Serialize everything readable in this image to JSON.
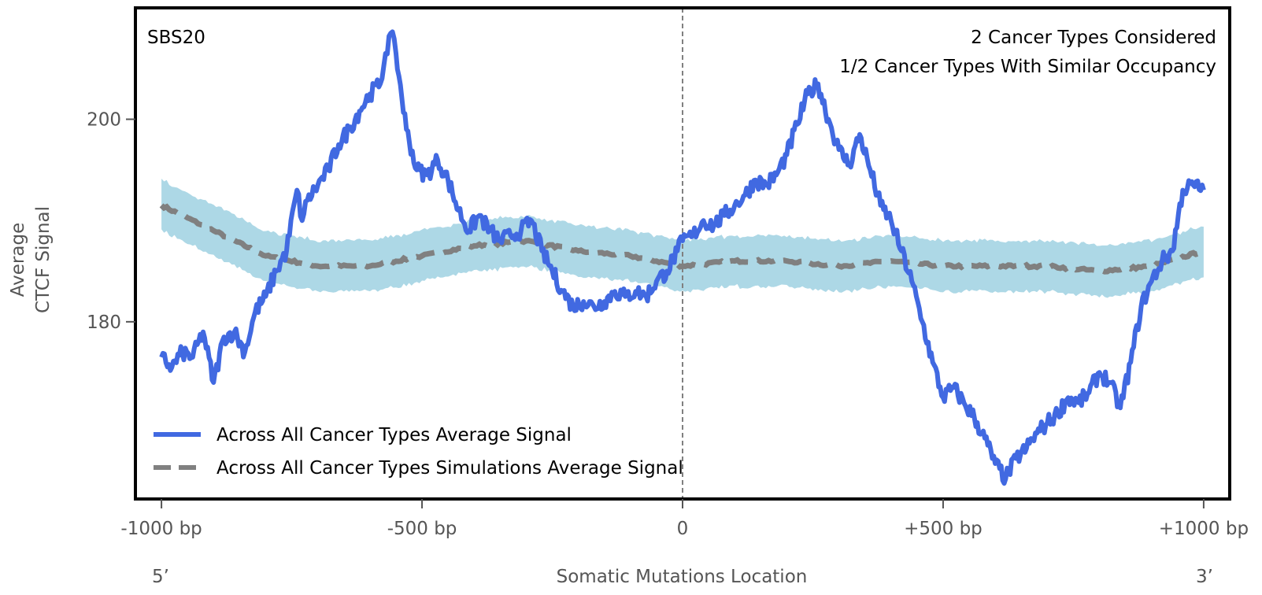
{
  "chart_data": {
    "type": "line",
    "title": "",
    "panel_label": "SBS20",
    "annotations": [
      "2 Cancer Types Considered",
      "1/2 Cancer Types With Similar Occupancy"
    ],
    "xlabel": "Somatic Mutations Location",
    "ylabel_lines": [
      "Average",
      "CTCF Signal"
    ],
    "x_end_labels": {
      "left": "5’",
      "right": "3’"
    },
    "xlim": [
      -1050,
      1050
    ],
    "ylim": [
      162.5,
      211
    ],
    "x_ticks": [
      {
        "value": -1000,
        "label": "-1000 bp"
      },
      {
        "value": -500,
        "label": "-500 bp"
      },
      {
        "value": 0,
        "label": "0"
      },
      {
        "value": 500,
        "label": "+500 bp"
      },
      {
        "value": 1000,
        "label": "+1000 bp"
      }
    ],
    "y_ticks": [
      {
        "value": 180,
        "label": "180"
      },
      {
        "value": 200,
        "label": "200"
      }
    ],
    "grid": false,
    "center_line": {
      "x": 0,
      "style": "dashed",
      "color": "#808080"
    },
    "legend": {
      "placement": "lower-left",
      "entries": [
        {
          "label": "Across All Cancer Types Average Signal",
          "style": "solid",
          "color": "#4169e1"
        },
        {
          "label": "Across All Cancer Types Simulations Average Signal",
          "style": "dashed",
          "color": "#808080"
        }
      ]
    },
    "series": [
      {
        "name": "Across All Cancer Types Average Signal",
        "style": "solid",
        "color": "#4169e1",
        "x": [
          -1000,
          -980,
          -960,
          -940,
          -920,
          -900,
          -880,
          -860,
          -840,
          -820,
          -800,
          -780,
          -760,
          -740,
          -730,
          -720,
          -700,
          -680,
          -660,
          -640,
          -620,
          -600,
          -580,
          -570,
          -560,
          -550,
          -530,
          -510,
          -490,
          -470,
          -450,
          -430,
          -410,
          -390,
          -370,
          -350,
          -330,
          -310,
          -290,
          -270,
          -250,
          -230,
          -210,
          -190,
          -170,
          -150,
          -130,
          -110,
          -90,
          -70,
          -50,
          -30,
          -10,
          0,
          20,
          40,
          60,
          80,
          100,
          120,
          140,
          160,
          180,
          200,
          220,
          240,
          260,
          280,
          300,
          320,
          340,
          360,
          380,
          400,
          420,
          440,
          460,
          480,
          500,
          520,
          540,
          560,
          580,
          600,
          620,
          640,
          660,
          680,
          700,
          720,
          740,
          760,
          780,
          800,
          820,
          840,
          860,
          880,
          900,
          920,
          940,
          960,
          980,
          1000
        ],
        "values": [
          176.5,
          175.5,
          177,
          176.5,
          179,
          174,
          178.5,
          179,
          177,
          181,
          182.5,
          185,
          187,
          193,
          190,
          192,
          193.5,
          195,
          197.5,
          199,
          200.8,
          202.5,
          203.5,
          206.5,
          208.5,
          206.5,
          199,
          195,
          194.5,
          196,
          194,
          191,
          189,
          190.5,
          189,
          188,
          188.5,
          189,
          190,
          187,
          185,
          183,
          181.5,
          182,
          181.5,
          182,
          183,
          182.5,
          183,
          182.5,
          184,
          185,
          187,
          188,
          188.5,
          190,
          189.5,
          190.5,
          191.5,
          192.5,
          194,
          193.5,
          194.5,
          196.5,
          199.5,
          202.5,
          203.5,
          200,
          197,
          195.5,
          198.5,
          195,
          191.5,
          190,
          187,
          184,
          180,
          176,
          172.5,
          173.5,
          172,
          170.5,
          168.5,
          166,
          164.5,
          166.5,
          167.5,
          169,
          170,
          171,
          172.5,
          172,
          173,
          175,
          174,
          171.5,
          176,
          181.5,
          184,
          186,
          187,
          193,
          193.5,
          193
        ]
      },
      {
        "name": "Across All Cancer Types Simulations Average Signal",
        "style": "dashed",
        "color": "#808080",
        "band_color": "#add8e6",
        "band_halfwidth": 2.5,
        "x": [
          -1000,
          -900,
          -800,
          -700,
          -600,
          -500,
          -400,
          -300,
          -200,
          -100,
          0,
          100,
          200,
          300,
          400,
          500,
          600,
          700,
          800,
          900,
          1000
        ],
        "values": [
          191.5,
          189,
          186.5,
          185.5,
          185.5,
          186.5,
          187.5,
          188,
          187,
          186.5,
          185.5,
          186,
          186,
          185.5,
          186,
          185.5,
          185.5,
          185.5,
          185,
          185.5,
          187
        ]
      }
    ]
  }
}
